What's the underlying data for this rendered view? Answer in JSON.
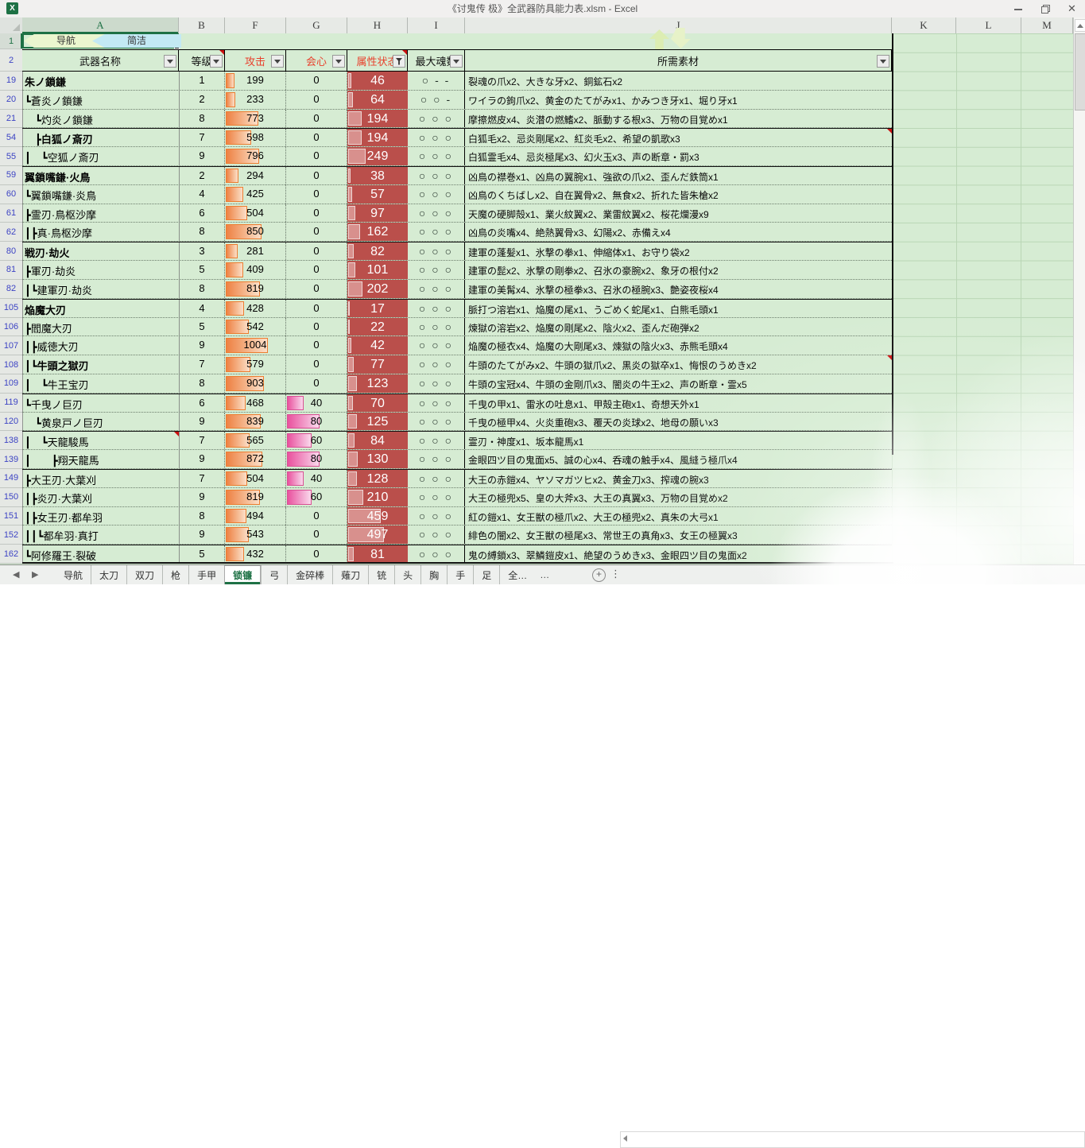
{
  "window": {
    "title": "《讨鬼传 极》全武器防具能力表.xlsm - Excel",
    "app_icon": "X"
  },
  "colors": {
    "accent_green": "#1e7145",
    "cell_green": "#d6ecd3",
    "attr_column_red": "#ba4f4b",
    "attack_bar_orange": "#ed7d31",
    "crit_bar_pink": "#e0509c",
    "header_red_text": "#e8402c",
    "row_number_blue": "#3d43c4"
  },
  "nav_shapes": {
    "nav_label": "导航",
    "concise_label": "简洁"
  },
  "column_letters": [
    "A",
    "B",
    "F",
    "G",
    "H",
    "I",
    "J",
    "K",
    "L",
    "M"
  ],
  "header": {
    "weapon": "武器名称",
    "level": "等级",
    "attack": "攻击",
    "crit": "会心",
    "attr": "属性状态",
    "max_soul": "最大魂数",
    "materials": "所需素材"
  },
  "rows": [
    {
      "num": 19,
      "name": "朱ノ鎖鎌",
      "bold": true,
      "level": 1,
      "attack": 199,
      "crit": 0,
      "attr": 46,
      "souls": "○ - -",
      "materials": "裂魂の爪x2、大きな牙x2、銅鉱石x2",
      "group": false
    },
    {
      "num": 20,
      "name": "┗蒼炎ノ鎖鎌",
      "bold": false,
      "level": 2,
      "attack": 233,
      "crit": 0,
      "attr": 64,
      "souls": "○ ○ -",
      "materials": "ワイラの鉤爪x2、黄金のたてがみx1、かみつき牙x1、堀り牙x1",
      "group": false
    },
    {
      "num": 21,
      "name": "　┗灼炎ノ鎖鎌",
      "bold": false,
      "level": 8,
      "attack": 773,
      "crit": 0,
      "attr": 194,
      "souls": "○ ○ ○",
      "materials": "摩擦燃皮x4、炎潜の燃鰭x2、脈動する根x3、万物の目覚めx1",
      "group": false
    },
    {
      "num": 54,
      "name": "　┣白狐ノ斎刃",
      "bold": true,
      "level": 7,
      "attack": 598,
      "crit": 0,
      "attr": 194,
      "souls": "○ ○ ○",
      "materials": "白狐毛x2、忌炎剛尾x2、紅炎毛x2、希望の凱歌x3",
      "group": true,
      "comment_mat": true
    },
    {
      "num": 55,
      "name": "┃　┗空狐ノ斎刃",
      "bold": false,
      "level": 9,
      "attack": 796,
      "crit": 0,
      "attr": 249,
      "souls": "○ ○ ○",
      "materials": "白狐霊毛x4、忌炎極尾x3、幻火玉x3、声の断章・罰x3",
      "group": false
    },
    {
      "num": 59,
      "name": "翼鎖嘴鎌·火鳥",
      "bold": true,
      "level": 2,
      "attack": 294,
      "crit": 0,
      "attr": 38,
      "souls": "○ ○ ○",
      "materials": "凶鳥の襟巻x1、凶鳥の翼腕x1、強欲の爪x2、歪んだ鉄筒x1",
      "group": true
    },
    {
      "num": 60,
      "name": "┗翼鎖嘴鎌·炎鳥",
      "bold": false,
      "level": 4,
      "attack": 425,
      "crit": 0,
      "attr": 57,
      "souls": "○ ○ ○",
      "materials": "凶鳥のくちばしx2、自在翼骨x2、無食x2、折れた皆朱槍x2",
      "group": false
    },
    {
      "num": 61,
      "name": "┣霊刃·鳥枢沙摩",
      "bold": false,
      "level": 6,
      "attack": 504,
      "crit": 0,
      "attr": 97,
      "souls": "○ ○ ○",
      "materials": "天魔の硬脚殻x1、業火紋翼x2、業雷紋翼x2、桜花爛漫x9",
      "group": false
    },
    {
      "num": 62,
      "name": "┃┣真·鳥枢沙摩",
      "bold": false,
      "level": 8,
      "attack": 850,
      "crit": 0,
      "attr": 162,
      "souls": "○ ○ ○",
      "materials": "凶鳥の炎嘴x4、絶熱翼骨x3、幻陽x2、赤備えx4",
      "group": false
    },
    {
      "num": 80,
      "name": "戦刃·劫火",
      "bold": true,
      "level": 3,
      "attack": 281,
      "crit": 0,
      "attr": 82,
      "souls": "○ ○ ○",
      "materials": "建軍の蓬髪x1、氷撃の拳x1、伸縮体x1、お守り袋x2",
      "group": true
    },
    {
      "num": 81,
      "name": "┣軍刃·劫炎",
      "bold": false,
      "level": 5,
      "attack": 409,
      "crit": 0,
      "attr": 101,
      "souls": "○ ○ ○",
      "materials": "建軍の髭x2、氷撃の剛拳x2、召氷の豪腕x2、象牙の根付x2",
      "group": false
    },
    {
      "num": 82,
      "name": "┃┗建軍刃·劫炎",
      "bold": false,
      "level": 8,
      "attack": 819,
      "crit": 0,
      "attr": 202,
      "souls": "○ ○ ○",
      "materials": "建軍の美髯x4、氷撃の極拳x3、召氷の極腕x3、艶姿夜桜x4",
      "group": false
    },
    {
      "num": 105,
      "name": "焔魔大刃",
      "bold": true,
      "level": 4,
      "attack": 428,
      "crit": 0,
      "attr": 17,
      "souls": "○ ○ ○",
      "materials": "脈打つ溶岩x1、焔魔の尾x1、うごめく蛇尾x1、白熊毛頭x1",
      "group": true
    },
    {
      "num": 106,
      "name": "┣閻魔大刃",
      "bold": false,
      "level": 5,
      "attack": 542,
      "crit": 0,
      "attr": 22,
      "souls": "○ ○ ○",
      "materials": "煉獄の溶岩x2、焔魔の剛尾x2、陰火x2、歪んだ砲弾x2",
      "group": false
    },
    {
      "num": 107,
      "name": "┃┣威徳大刃",
      "bold": false,
      "level": 9,
      "attack": 1004,
      "crit": 0,
      "attr": 42,
      "souls": "○ ○ ○",
      "materials": "焔魔の極衣x4、焔魔の大剛尾x3、煉獄の陰火x3、赤熊毛頭x4",
      "group": false
    },
    {
      "num": 108,
      "name": "┃┗牛頭之獄刃",
      "bold": true,
      "level": 7,
      "attack": 579,
      "crit": 0,
      "attr": 77,
      "souls": "○ ○ ○",
      "materials": "牛頭のたてがみx2、牛頭の獄爪x2、黒炎の獄卒x1、悔恨のうめきx2",
      "group": false,
      "comment_mat": true
    },
    {
      "num": 109,
      "name": "┃　┗牛王宝刃",
      "bold": false,
      "level": 8,
      "attack": 903,
      "crit": 0,
      "attr": 123,
      "souls": "○ ○ ○",
      "materials": "牛頭の宝冠x4、牛頭の金剛爪x3、闇炎の牛王x2、声の断章・霊x5",
      "group": false
    },
    {
      "num": 119,
      "name": "┗千曳ノ巨刃",
      "bold": false,
      "level": 6,
      "attack": 468,
      "crit": 40,
      "attr": 70,
      "souls": "○ ○ ○",
      "materials": "千曳の甲x1、雷氷の吐息x1、甲殻主砲x1、奇想天外x1",
      "group": true
    },
    {
      "num": 120,
      "name": "　┗黄泉戸ノ巨刃",
      "bold": false,
      "level": 9,
      "attack": 839,
      "crit": 80,
      "attr": 125,
      "souls": "○ ○ ○",
      "materials": "千曳の極甲x4、火炎重砲x3、覆天の炎球x2、地母の願いx3",
      "group": false
    },
    {
      "num": 138,
      "name": "┃　┗天龍駿馬",
      "bold": false,
      "level": 7,
      "attack": 565,
      "crit": 60,
      "attr": 84,
      "souls": "○ ○ ○",
      "materials": "霊刃・神度x1、坂本龍馬x1",
      "group": true,
      "comment_name": true
    },
    {
      "num": 139,
      "name": "┃　　┣翔天龍馬",
      "bold": false,
      "level": 9,
      "attack": 872,
      "crit": 80,
      "attr": 130,
      "souls": "○ ○ ○",
      "materials": "金眼四ツ目の鬼面x5、誠の心x4、呑魂の触手x4、風縫う極爪x4",
      "group": false
    },
    {
      "num": 149,
      "name": "┣大王刃·大葉刈",
      "bold": false,
      "level": 7,
      "attack": 504,
      "crit": 40,
      "attr": 128,
      "souls": "○ ○ ○",
      "materials": "大王の赤鎧x4、ヤソマガツヒx2、黄金刀x3、搾魂の腕x3",
      "group": true
    },
    {
      "num": 150,
      "name": "┃┣炎刃·大葉刈",
      "bold": false,
      "level": 9,
      "attack": 819,
      "crit": 60,
      "attr": 210,
      "souls": "○ ○ ○",
      "materials": "大王の極兜x5、皇の大斧x3、大王の真翼x3、万物の目覚めx2",
      "group": false
    },
    {
      "num": 151,
      "name": "┃┣女王刃·都牟羽",
      "bold": false,
      "level": 8,
      "attack": 494,
      "crit": 0,
      "attr": 459,
      "souls": "○ ○ ○",
      "materials": "紅の鎧x1、女王獣の極爪x2、大王の極兜x2、真朱の大弓x1",
      "group": false
    },
    {
      "num": 152,
      "name": "┃┃┗都牟羽·真打",
      "bold": false,
      "level": 9,
      "attack": 543,
      "crit": 0,
      "attr": 497,
      "souls": "○ ○ ○",
      "materials": "緋色の闇x2、女王獣の極尾x3、常世王の真角x3、女王の極翼x3",
      "group": false
    },
    {
      "num": 162,
      "name": "┗阿修羅王·裂破",
      "bold": false,
      "level": 5,
      "attack": 432,
      "crit": 0,
      "attr": 81,
      "souls": "○ ○ ○",
      "materials": "鬼の縛鎖x3、翠鱗鎧皮x1、絶望のうめきx3、金眼四ツ目の鬼面x2",
      "group": true
    }
  ],
  "sheet_tabs": {
    "items": [
      "导航",
      "太刀",
      "双刀",
      "枪",
      "手甲",
      "锁镰",
      "弓",
      "金碎棒",
      "薙刀",
      "铳",
      "头",
      "胸",
      "手",
      "足",
      "全…"
    ],
    "active": "锁镰",
    "overflow": "…",
    "add_label": "+",
    "menu_label": "⋮"
  }
}
